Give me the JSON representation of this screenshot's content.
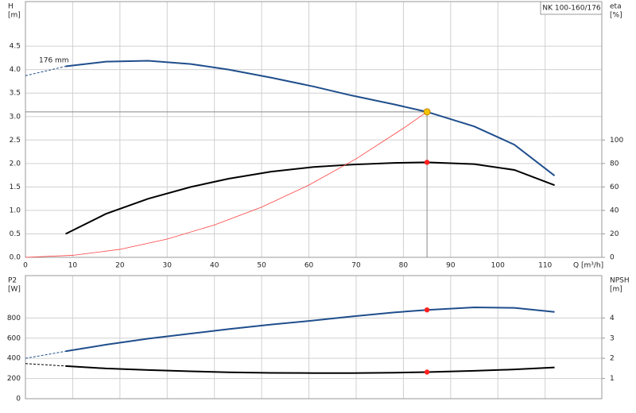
{
  "chart_data": [
    {
      "type": "line",
      "model": "NK 100-160/176",
      "ylabel": "H",
      "yunit": "[m]",
      "y2label": "eta",
      "y2unit": "[%]",
      "xlabel": "Q [m³/h]",
      "annotation": "176 mm",
      "xlim": [
        0,
        122
      ],
      "xticks": [
        0,
        10,
        20,
        30,
        40,
        50,
        60,
        70,
        80,
        90,
        100,
        110
      ],
      "ylim": [
        0,
        5.45
      ],
      "yticks": [
        {
          "value": 0,
          "label": "0.0"
        },
        0.5,
        {
          "value": 1,
          "label": "1.0"
        },
        1.5,
        {
          "value": 2,
          "label": "2.0"
        },
        2.5,
        {
          "value": 3,
          "label": "3.0"
        },
        3.5,
        {
          "value": 4,
          "label": "4.0"
        },
        4.5
      ],
      "y2lim": [
        0,
        218
      ],
      "y2ticks": [
        0,
        20,
        40,
        60,
        80,
        100
      ],
      "grid": true,
      "series": [
        {
          "color": "#1f4e8c",
          "dash": true,
          "x": [
            0,
            8.5
          ],
          "values": [
            3.87,
            4.07
          ]
        },
        {
          "color": "#1f4e8c",
          "x": [
            8.5,
            17,
            26,
            35,
            43,
            52,
            61,
            69,
            78,
            85,
            95,
            103.5,
            112
          ],
          "values": [
            4.07,
            4.17,
            4.19,
            4.12,
            4.0,
            3.83,
            3.64,
            3.45,
            3.26,
            3.1,
            2.79,
            2.4,
            1.74
          ]
        },
        {
          "color": "#000000",
          "axis": "y2",
          "x": [
            8.5,
            17,
            26,
            35,
            43,
            52,
            61,
            69,
            78,
            85,
            95,
            103.5,
            112
          ],
          "values": [
            20,
            37,
            50,
            60,
            67,
            73,
            77,
            79,
            80.5,
            81,
            79.5,
            74.5,
            61.5
          ]
        },
        {
          "color": "#ff4040",
          "thin": true,
          "x": [
            0,
            10,
            20,
            30,
            40,
            50,
            60,
            70,
            80,
            85
          ],
          "values": [
            0,
            0.043,
            0.17,
            0.39,
            0.69,
            1.07,
            1.54,
            2.1,
            2.75,
            3.1
          ]
        }
      ],
      "guide": {
        "x": 85,
        "y": 3.1
      },
      "points": [
        {
          "x": 85,
          "y": 3.1,
          "color": "#f5c400"
        },
        {
          "x": 85,
          "y": 81,
          "axis": "y2",
          "color": "#ff2020"
        }
      ]
    },
    {
      "type": "line",
      "ylabel": "P2",
      "yunit": "[W]",
      "y2label": "NPSH",
      "y2unit": "[m]",
      "xlim": [
        0,
        122
      ],
      "xticks": [
        0,
        10,
        20,
        30,
        40,
        50,
        60,
        70,
        80,
        90,
        100,
        110
      ],
      "show_xtick_labels": false,
      "ylim": [
        0,
        1220
      ],
      "yticks": [
        0,
        200,
        400,
        600,
        800
      ],
      "y2lim": [
        0,
        6.1
      ],
      "y2ticks": [
        1,
        2,
        3,
        4
      ],
      "grid": true,
      "series": [
        {
          "color": "#1f4e8c",
          "dash": true,
          "x": [
            0,
            8.5
          ],
          "values": [
            400,
            470
          ]
        },
        {
          "color": "#1f4e8c",
          "x": [
            8.5,
            17,
            26,
            35,
            43,
            52,
            61,
            69,
            78,
            85,
            95,
            103.5,
            112
          ],
          "values": [
            470,
            535,
            595,
            645,
            690,
            735,
            775,
            815,
            855,
            880,
            905,
            900,
            860
          ]
        },
        {
          "color": "#000000",
          "axis": "y2",
          "dash": true,
          "x": [
            0,
            8.5
          ],
          "values": [
            1.74,
            1.62
          ]
        },
        {
          "color": "#000000",
          "axis": "y2",
          "x": [
            8.5,
            17,
            26,
            35,
            43,
            52,
            61,
            69,
            78,
            85,
            95,
            103.5,
            112
          ],
          "values": [
            1.62,
            1.5,
            1.42,
            1.36,
            1.31,
            1.28,
            1.27,
            1.27,
            1.29,
            1.32,
            1.38,
            1.45,
            1.55
          ]
        }
      ],
      "points": [
        {
          "x": 85,
          "y": 880,
          "color": "#ff2020"
        },
        {
          "x": 85,
          "y": 1.32,
          "axis": "y2",
          "color": "#ff2020"
        }
      ]
    }
  ]
}
